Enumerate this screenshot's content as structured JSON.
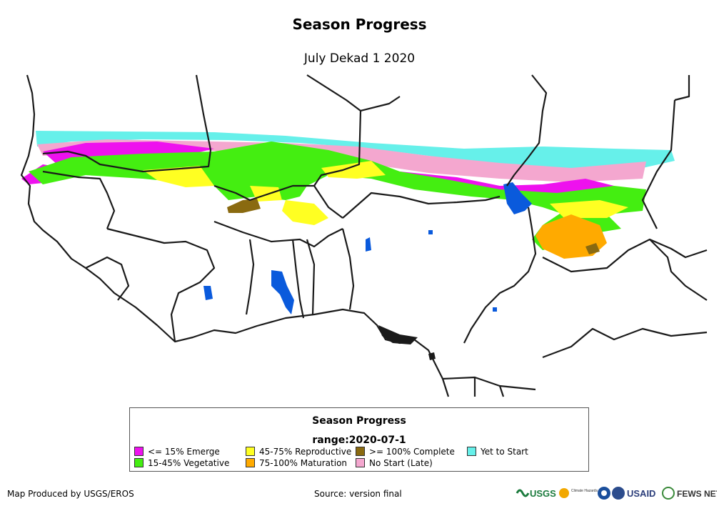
{
  "title": "Season Progress",
  "subtitle": "July Dekad 1 2020",
  "legend": {
    "title": "Season Progress",
    "range": "range:2020-07-1",
    "items": [
      {
        "label": "<= 15% Emerge",
        "color": "#ee11ee"
      },
      {
        "label": "15-45% Vegetative",
        "color": "#44ee11"
      },
      {
        "label": "45-75% Reproductive",
        "color": "#ffff22"
      },
      {
        "label": "75-100% Maturation",
        "color": "#ffaa00"
      },
      {
        "label": ">= 100% Complete",
        "color": "#8a6a10"
      },
      {
        "label": "No Start (Late)",
        "color": "#f4a7cf"
      },
      {
        "label": "Yet to Start",
        "color": "#66f0ea"
      }
    ]
  },
  "footer": {
    "produced_by": "Map Produced by USGS/EROS",
    "source": "Source: version final"
  },
  "logos": {
    "usgs": "USGS",
    "chc": "Climate Hazards Center",
    "usaid": "USAID",
    "fewsnet": "FEWS NET"
  },
  "colors": {
    "water": "#0a5adc",
    "border": "#1a1a1a"
  }
}
